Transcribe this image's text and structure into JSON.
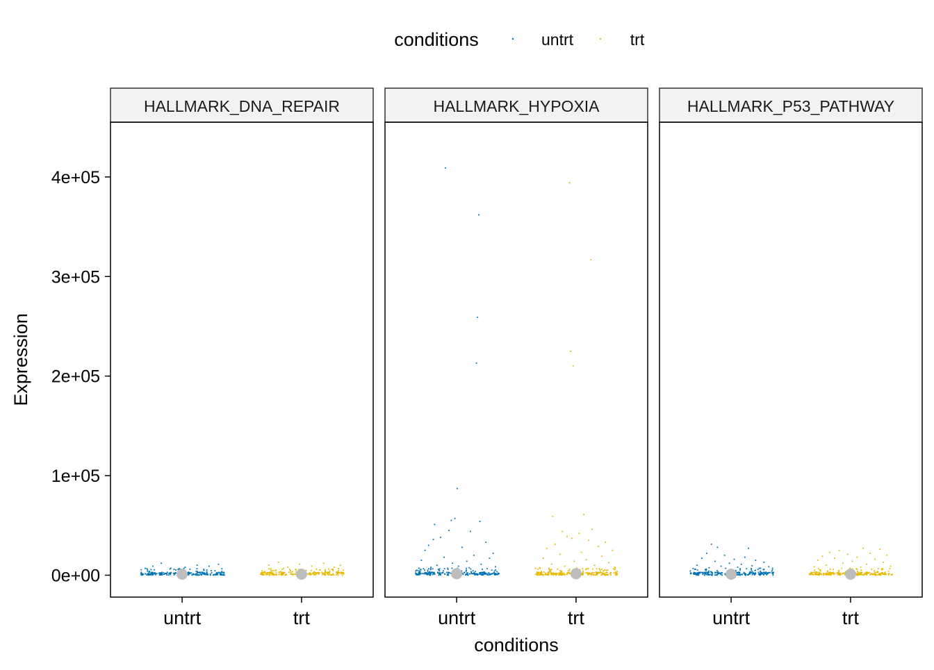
{
  "chart_data": {
    "type": "scatter",
    "subtype": "faceted jitter plot with median markers",
    "legend": {
      "title": "conditions",
      "position": "top",
      "entries": [
        {
          "label": "untrt",
          "color": "#0072B2"
        },
        {
          "label": "trt",
          "color": "#E7B800"
        }
      ]
    },
    "xlabel": "conditions",
    "ylabel": "Expression",
    "ylim": [
      -22000,
      455000
    ],
    "yticks": [
      0,
      100000,
      200000,
      300000,
      400000
    ],
    "ytick_labels": [
      "0e+00",
      "1e+05",
      "2e+05",
      "3e+05",
      "4e+05"
    ],
    "categories": [
      "untrt",
      "trt"
    ],
    "grid": false,
    "median_marker_color": "#BDBDBD",
    "facets": [
      {
        "title": "HALLMARK_DNA_REPAIR",
        "series": [
          {
            "name": "untrt",
            "color": "#0072B2",
            "median": 1000,
            "outliers": [
              {
                "x": -0.25,
                "y": 9000
              },
              {
                "x": -0.18,
                "y": 12000
              },
              {
                "x": -0.1,
                "y": 7000
              },
              {
                "x": 0.02,
                "y": 8000
              },
              {
                "x": 0.12,
                "y": 10000
              },
              {
                "x": 0.22,
                "y": 9000
              },
              {
                "x": 0.3,
                "y": 11000
              },
              {
                "x": 0.06,
                "y": 6000
              },
              {
                "x": -0.3,
                "y": 6500
              }
            ]
          },
          {
            "name": "trt",
            "color": "#E7B800",
            "median": 1000,
            "outliers": [
              {
                "x": -0.28,
                "y": 10000
              },
              {
                "x": -0.2,
                "y": 13000
              },
              {
                "x": -0.12,
                "y": 8000
              },
              {
                "x": -0.02,
                "y": 11000
              },
              {
                "x": 0.08,
                "y": 9000
              },
              {
                "x": 0.18,
                "y": 12000
              },
              {
                "x": 0.27,
                "y": 8000
              },
              {
                "x": 0.32,
                "y": 10000
              },
              {
                "x": 0.12,
                "y": 6000
              }
            ]
          }
        ]
      },
      {
        "title": "HALLMARK_HYPOXIA",
        "series": [
          {
            "name": "untrt",
            "color": "#0072B2",
            "median": 1500,
            "outliers": [
              {
                "x": -0.1,
                "y": 409000
              },
              {
                "x": 0.18,
                "y": 362000
              },
              {
                "x": 0.17,
                "y": 259000
              },
              {
                "x": 0.16,
                "y": 213000
              },
              {
                "x": 0.0,
                "y": 87000
              },
              {
                "x": -0.05,
                "y": 55000
              },
              {
                "x": -0.02,
                "y": 57000
              },
              {
                "x": 0.19,
                "y": 54000
              },
              {
                "x": -0.19,
                "y": 51000
              },
              {
                "x": -0.07,
                "y": 45000
              },
              {
                "x": 0.11,
                "y": 44000
              },
              {
                "x": -0.14,
                "y": 38000
              },
              {
                "x": -0.2,
                "y": 36000
              },
              {
                "x": 0.24,
                "y": 33000
              },
              {
                "x": -0.24,
                "y": 30000
              },
              {
                "x": 0.04,
                "y": 28000
              },
              {
                "x": -0.27,
                "y": 25000
              },
              {
                "x": 0.3,
                "y": 22000
              },
              {
                "x": 0.14,
                "y": 20000
              },
              {
                "x": -0.11,
                "y": 18000
              },
              {
                "x": 0.27,
                "y": 17000
              },
              {
                "x": -0.3,
                "y": 15000
              },
              {
                "x": 0.08,
                "y": 14000
              },
              {
                "x": -0.04,
                "y": 12000
              },
              {
                "x": 0.2,
                "y": 11000
              },
              {
                "x": -0.17,
                "y": 10000
              },
              {
                "x": 0.01,
                "y": 9000
              },
              {
                "x": 0.32,
                "y": 8500
              },
              {
                "x": -0.22,
                "y": 8000
              },
              {
                "x": 0.1,
                "y": 7500
              },
              {
                "x": -0.08,
                "y": 7000
              },
              {
                "x": 0.25,
                "y": 6500
              }
            ]
          },
          {
            "name": "trt",
            "color": "#E7B800",
            "median": 1500,
            "outliers": [
              {
                "x": -0.06,
                "y": 394000
              },
              {
                "x": 0.12,
                "y": 317000
              },
              {
                "x": -0.05,
                "y": 225000
              },
              {
                "x": -0.03,
                "y": 210000
              },
              {
                "x": 0.06,
                "y": 61000
              },
              {
                "x": -0.2,
                "y": 59000
              },
              {
                "x": 0.13,
                "y": 46000
              },
              {
                "x": -0.12,
                "y": 44000
              },
              {
                "x": 0.02,
                "y": 42000
              },
              {
                "x": -0.08,
                "y": 39000
              },
              {
                "x": -0.04,
                "y": 37000
              },
              {
                "x": 0.1,
                "y": 35000
              },
              {
                "x": 0.24,
                "y": 33000
              },
              {
                "x": -0.18,
                "y": 31000
              },
              {
                "x": 0.18,
                "y": 29000
              },
              {
                "x": -0.25,
                "y": 27000
              },
              {
                "x": 0.3,
                "y": 25000
              },
              {
                "x": 0.04,
                "y": 23000
              },
              {
                "x": -0.14,
                "y": 21000
              },
              {
                "x": 0.21,
                "y": 19000
              },
              {
                "x": -0.28,
                "y": 17000
              },
              {
                "x": 0.08,
                "y": 15500
              },
              {
                "x": -0.02,
                "y": 14000
              },
              {
                "x": 0.27,
                "y": 12500
              },
              {
                "x": -0.21,
                "y": 11000
              },
              {
                "x": 0.15,
                "y": 10000
              },
              {
                "x": -0.1,
                "y": 9000
              },
              {
                "x": 0.32,
                "y": 8000
              },
              {
                "x": -0.31,
                "y": 7500
              },
              {
                "x": 0.0,
                "y": 7000
              },
              {
                "x": 0.19,
                "y": 6500
              },
              {
                "x": -0.16,
                "y": 6000
              }
            ]
          }
        ]
      },
      {
        "title": "HALLMARK_P53_PATHWAY",
        "series": [
          {
            "name": "untrt",
            "color": "#0072B2",
            "median": 1000,
            "outliers": [
              {
                "x": -0.17,
                "y": 31000
              },
              {
                "x": -0.12,
                "y": 28000
              },
              {
                "x": 0.14,
                "y": 27000
              },
              {
                "x": -0.21,
                "y": 22000
              },
              {
                "x": -0.06,
                "y": 20000
              },
              {
                "x": 0.11,
                "y": 18000
              },
              {
                "x": -0.25,
                "y": 17000
              },
              {
                "x": 0.02,
                "y": 16000
              },
              {
                "x": 0.2,
                "y": 15000
              },
              {
                "x": -0.14,
                "y": 14000
              },
              {
                "x": 0.27,
                "y": 13000
              },
              {
                "x": -0.02,
                "y": 12000
              },
              {
                "x": 0.08,
                "y": 11000
              },
              {
                "x": -0.29,
                "y": 10000
              },
              {
                "x": 0.17,
                "y": 9500
              },
              {
                "x": -0.09,
                "y": 9000
              },
              {
                "x": 0.31,
                "y": 8500
              },
              {
                "x": 0.05,
                "y": 8000
              },
              {
                "x": -0.19,
                "y": 7500
              },
              {
                "x": 0.23,
                "y": 7000
              }
            ]
          },
          {
            "name": "trt",
            "color": "#E7B800",
            "median": 1000,
            "outliers": [
              {
                "x": 0.1,
                "y": 27000
              },
              {
                "x": 0.24,
                "y": 26000
              },
              {
                "x": -0.1,
                "y": 25000
              },
              {
                "x": -0.18,
                "y": 23000
              },
              {
                "x": 0.16,
                "y": 22000
              },
              {
                "x": -0.03,
                "y": 21000
              },
              {
                "x": 0.3,
                "y": 20000
              },
              {
                "x": -0.24,
                "y": 19000
              },
              {
                "x": 0.05,
                "y": 18000
              },
              {
                "x": -0.14,
                "y": 17000
              },
              {
                "x": 0.2,
                "y": 16000
              },
              {
                "x": -0.28,
                "y": 15000
              },
              {
                "x": 0.01,
                "y": 14000
              },
              {
                "x": 0.27,
                "y": 13000
              },
              {
                "x": -0.07,
                "y": 12000
              },
              {
                "x": 0.13,
                "y": 11000
              },
              {
                "x": -0.21,
                "y": 10000
              },
              {
                "x": 0.33,
                "y": 9000
              },
              {
                "x": -0.31,
                "y": 8500
              },
              {
                "x": 0.08,
                "y": 8000
              },
              {
                "x": -0.01,
                "y": 7000
              }
            ]
          }
        ]
      }
    ]
  }
}
